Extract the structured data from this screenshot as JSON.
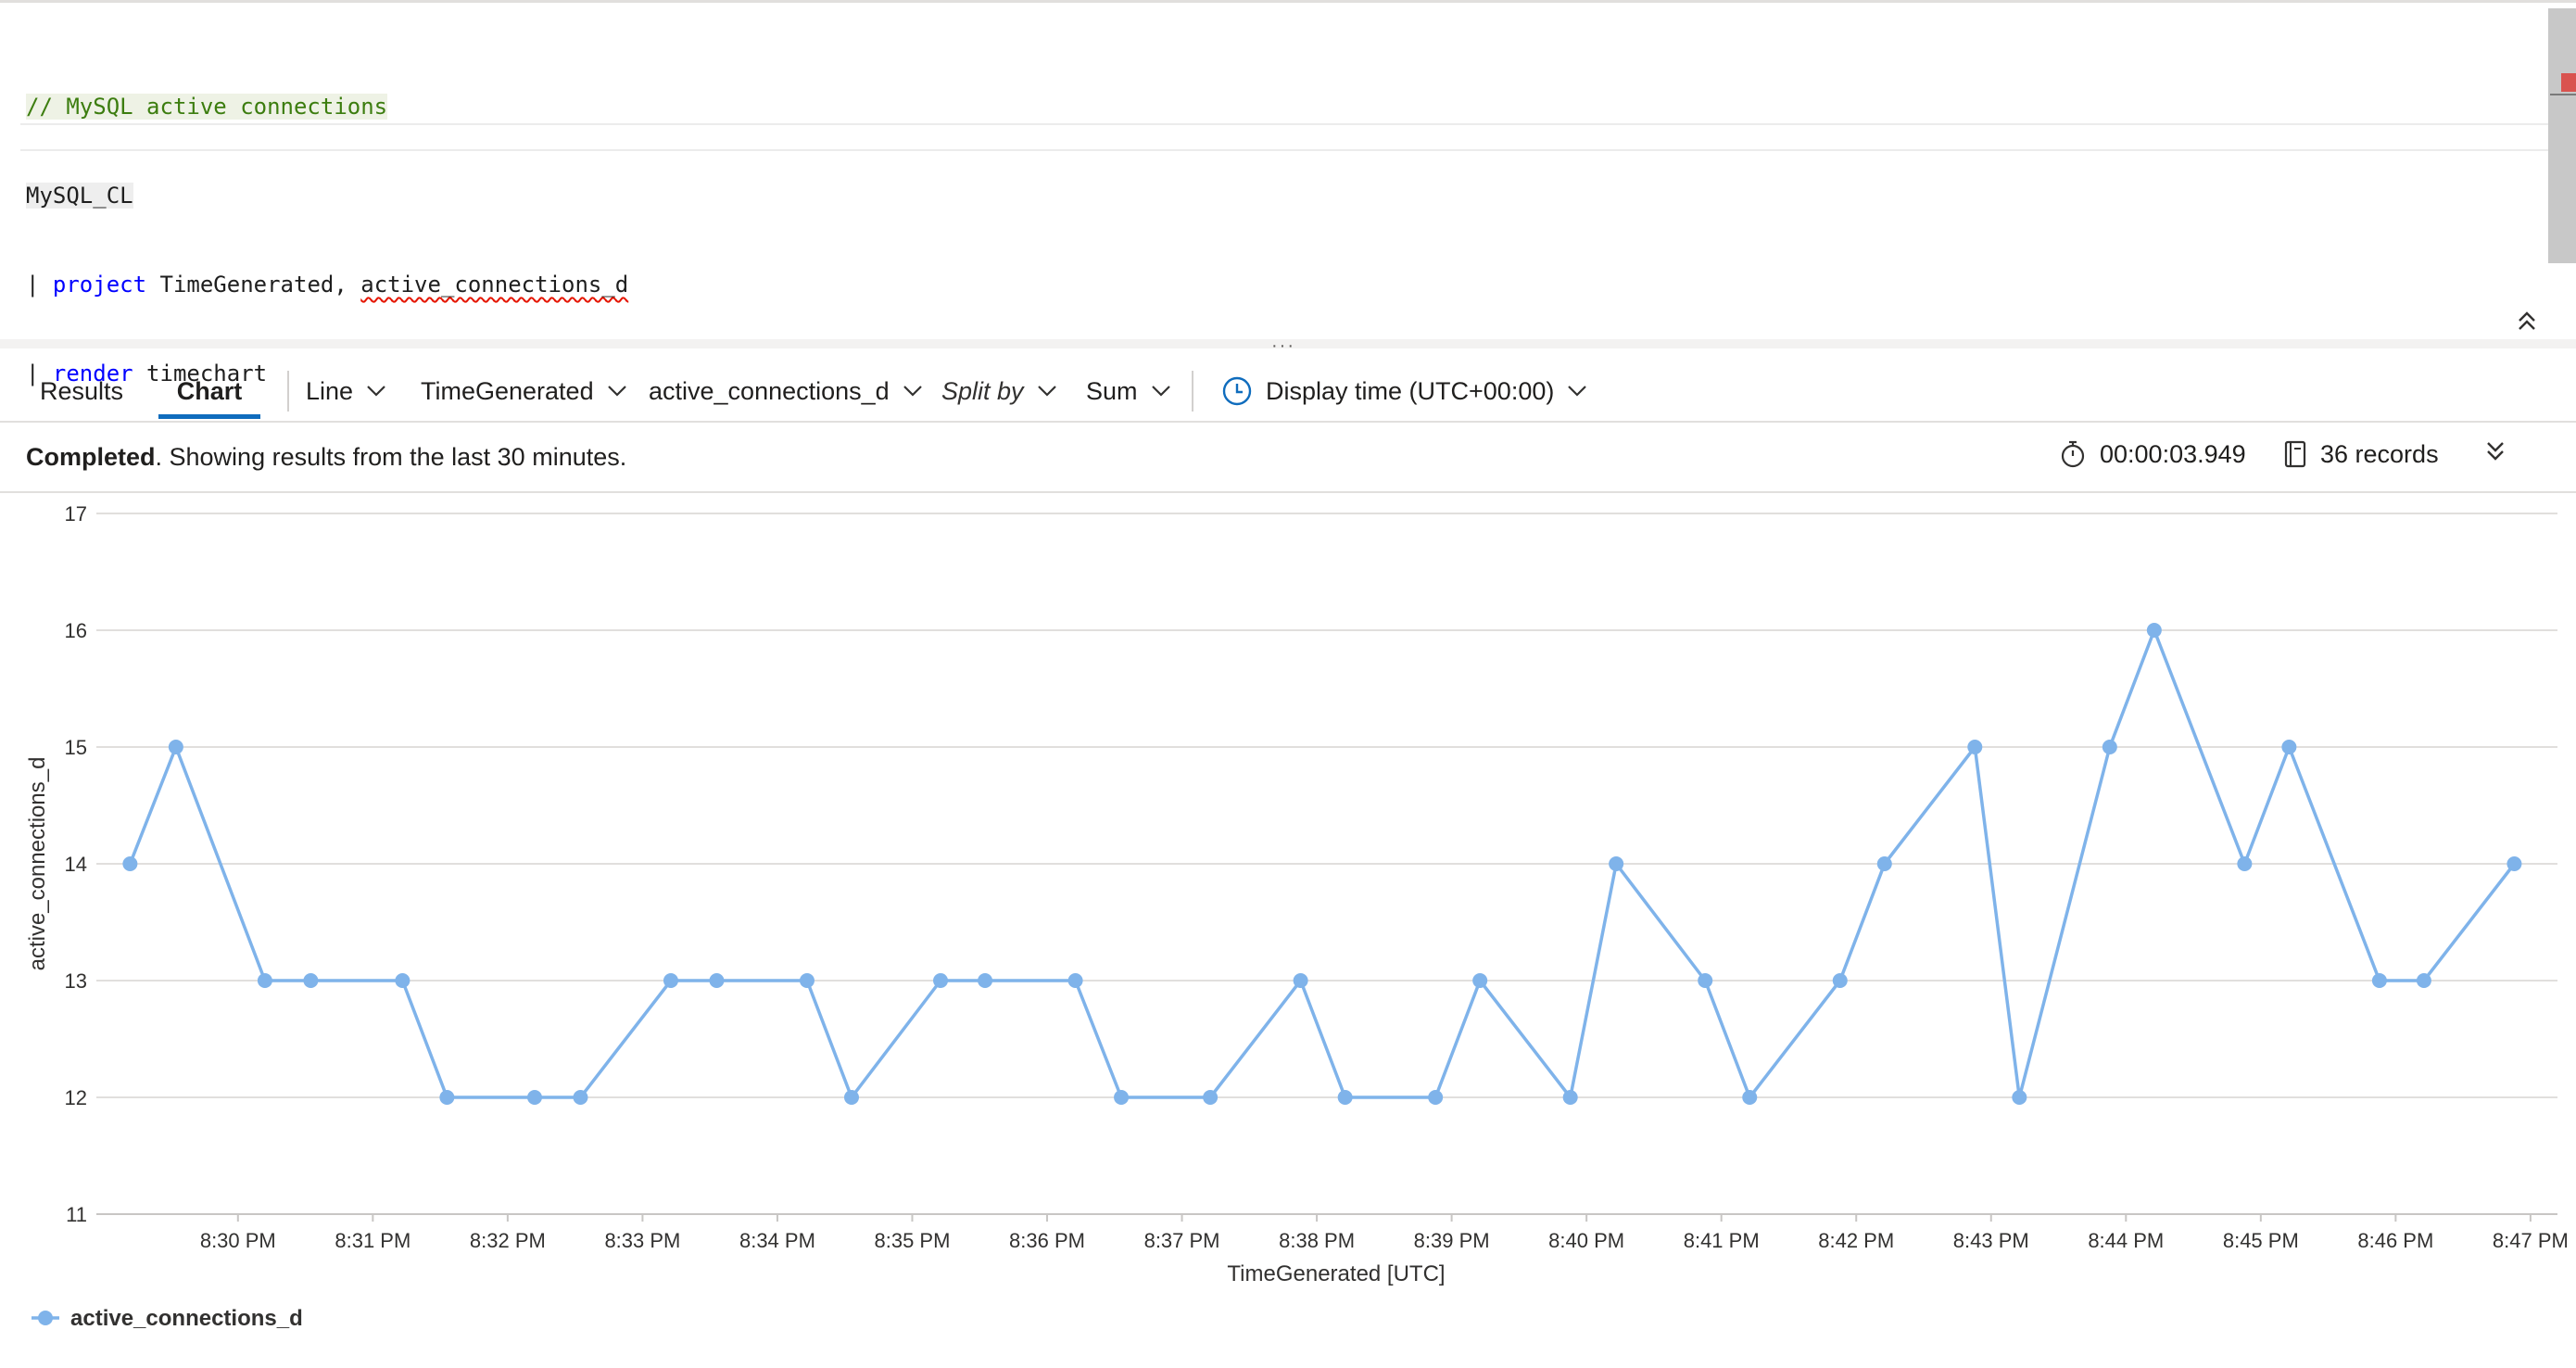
{
  "editor": {
    "comment": "// MySQL active connections",
    "table": "MySQL_CL",
    "pipe": "| ",
    "kw_project": "project",
    "project_args_1": " TimeGenerated, ",
    "project_args_2": "active_connections_d",
    "kw_render": "render",
    "render_arg": " timechart"
  },
  "toolbar": {
    "tab_results": "Results",
    "tab_chart": "Chart",
    "chart_type": "Line",
    "x_column": "TimeGenerated",
    "y_column": "active_connections_d",
    "split_by": "Split by",
    "aggregation": "Sum",
    "display_time": "Display time (UTC+00:00)"
  },
  "status": {
    "state": "Completed",
    "message": ". Showing results from the last 30 minutes.",
    "duration": "00:00:03.949",
    "records": "36 records"
  },
  "colors": {
    "series": "#7fb3ea",
    "accent": "#0f6cbd"
  },
  "chart_data": {
    "type": "line",
    "xlabel": "TimeGenerated [UTC]",
    "ylabel": "active_connections_d",
    "ylim": [
      11,
      17
    ],
    "yticks": [
      11,
      12,
      13,
      14,
      15,
      16,
      17
    ],
    "xticks": [
      "8:30 PM",
      "8:31 PM",
      "8:32 PM",
      "8:33 PM",
      "8:34 PM",
      "8:35 PM",
      "8:36 PM",
      "8:37 PM",
      "8:38 PM",
      "8:39 PM",
      "8:40 PM",
      "8:41 PM",
      "8:42 PM",
      "8:43 PM",
      "8:44 PM",
      "8:45 PM",
      "8:46 PM",
      "8:47 PM"
    ],
    "xlim_minutes_past_830pm": [
      -1.05,
      17.2
    ],
    "grid": true,
    "legend": "bottom-left",
    "series": [
      {
        "name": "active_connections_d",
        "minutes_past_830pm": [
          -0.8,
          -0.46,
          0.2,
          0.54,
          1.22,
          1.55,
          2.2,
          2.54,
          3.21,
          3.55,
          4.22,
          4.55,
          5.21,
          5.54,
          6.21,
          6.55,
          7.21,
          7.88,
          8.21,
          8.88,
          9.21,
          9.88,
          10.22,
          10.88,
          11.21,
          11.88,
          12.21,
          12.88,
          13.21,
          13.88,
          14.21,
          14.88,
          15.21,
          15.88,
          16.21,
          16.88
        ],
        "values": [
          14,
          15,
          13,
          13,
          13,
          12,
          12,
          12,
          13,
          13,
          13,
          12,
          13,
          13,
          13,
          12,
          12,
          13,
          12,
          12,
          13,
          12,
          14,
          13,
          12,
          13,
          14,
          15,
          12,
          15,
          16,
          14,
          15,
          13,
          13,
          14
        ]
      }
    ]
  }
}
